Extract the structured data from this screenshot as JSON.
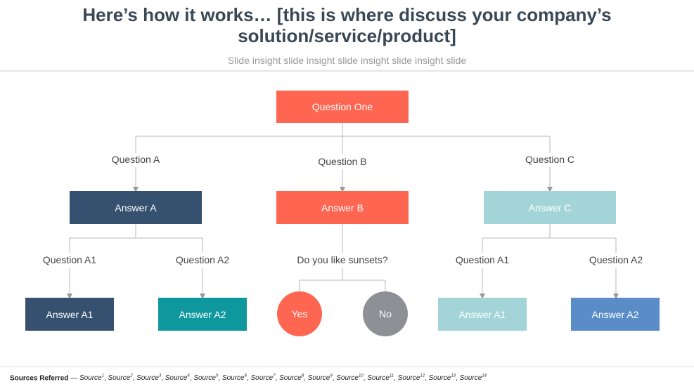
{
  "header": {
    "title_line1": "Here’s how it works… [this is where discuss your company’s",
    "title_line2": "solution/service/product]",
    "subtitle": "Slide insight slide insight slide insight slide insight slide"
  },
  "diagram": {
    "root": "Question One",
    "questions": {
      "a": "Question A",
      "b": "Question B",
      "c": "Question C"
    },
    "answers": {
      "a": "Answer A",
      "b": "Answer B",
      "c": "Answer C"
    },
    "sub_questions": {
      "a1": "Question A1",
      "a2": "Question A2",
      "b": "Do you like sunsets?",
      "c1": "Question A1",
      "c2": "Question A2"
    },
    "leaves": {
      "a1": "Answer A1",
      "a2": "Answer A2",
      "yes": "Yes",
      "no": "No",
      "c1": "Answer A1",
      "c2": "Answer A2"
    },
    "colors": {
      "coral": "#fe6652",
      "navy": "#36516f",
      "teal": "#0f979e",
      "light_teal": "#a3d5d8",
      "blue": "#5a8dc7",
      "gray": "#8f8f96",
      "line": "#b7b7b7"
    }
  },
  "footer": {
    "label": "Sources Referred",
    "sources": [
      "Source",
      "Source",
      "Source",
      "Source",
      "Source",
      "Source",
      "Source",
      "Source",
      "Source",
      "Source",
      "Source",
      "Source",
      "Source",
      "Source"
    ],
    "superscripts": [
      "1",
      "2",
      "3",
      "4",
      "5",
      "6",
      "7",
      "8",
      "9",
      "10",
      "11",
      "12",
      "13",
      "14"
    ]
  }
}
